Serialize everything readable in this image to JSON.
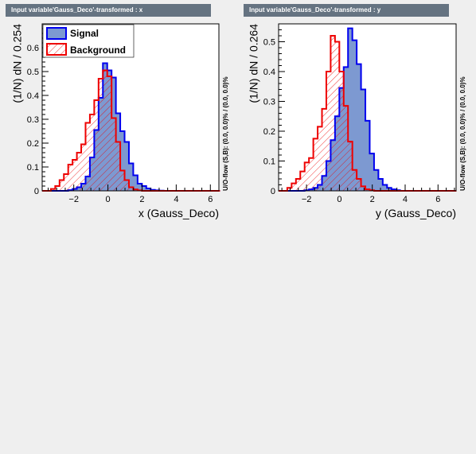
{
  "chart_data": [
    {
      "type": "histogram",
      "panel_title": "Input variable'Gauss_Deco'-transformed : x",
      "xlabel": "x (Gauss_Deco)",
      "ylabel": "(1/N) dN / 0.254",
      "overflow_label": "U/O-flow (S,B): (0.0, 0.0)% / (0.0, 0.0)%",
      "xlim": [
        -3.85,
        6.5
      ],
      "ylim": [
        0,
        0.7
      ],
      "x_ticks": [
        -2,
        0,
        2,
        4,
        6
      ],
      "x_tick_labels": [
        "−2",
        "0",
        "2",
        "4",
        "6"
      ],
      "y_ticks": [
        0,
        0.1,
        0.2,
        0.3,
        0.4,
        0.5,
        0.6
      ],
      "y_tick_labels": [
        "0",
        "0.1",
        "0.2",
        "0.3",
        "0.4",
        "0.5",
        "0.6"
      ],
      "bin_start": -3.85,
      "bin_width": 0.254,
      "legend": {
        "placement": "top-left",
        "entries": [
          "Signal",
          "Background"
        ]
      },
      "series": [
        {
          "name": "Signal",
          "color": "#0000ee",
          "fill": "#7d99d1",
          "values": [
            0,
            0,
            0,
            0,
            0,
            0,
            0.003,
            0.008,
            0.015,
            0.03,
            0.06,
            0.14,
            0.255,
            0.39,
            0.535,
            0.505,
            0.475,
            0.325,
            0.25,
            0.205,
            0.115,
            0.065,
            0.03,
            0.02,
            0.01,
            0.004,
            0.002,
            0.001,
            0,
            0,
            0,
            0,
            0,
            0,
            0,
            0,
            0,
            0,
            0,
            0,
            0
          ]
        },
        {
          "name": "Background",
          "color": "#ee0000",
          "fill": "none",
          "values": [
            0,
            0,
            0.008,
            0.02,
            0.045,
            0.07,
            0.11,
            0.13,
            0.16,
            0.195,
            0.285,
            0.32,
            0.38,
            0.47,
            0.505,
            0.48,
            0.305,
            0.205,
            0.085,
            0.045,
            0.015,
            0.006,
            0.002,
            0,
            0,
            0,
            0,
            0,
            0,
            0,
            0,
            0,
            0,
            0,
            0,
            0,
            0,
            0,
            0,
            0,
            0
          ]
        }
      ]
    },
    {
      "type": "histogram",
      "panel_title": "Input variable'Gauss_Deco'-transformed : y",
      "xlabel": "y (Gauss_Deco)",
      "ylabel": "(1/N) dN / 0.264",
      "overflow_label": "U/O-flow (S,B): (0.0, 0.0)% / (0.0, 0.0)%",
      "xlim": [
        -3.7,
        7.1
      ],
      "ylim": [
        0,
        0.56
      ],
      "x_ticks": [
        -2,
        0,
        2,
        4,
        6
      ],
      "x_tick_labels": [
        "−2",
        "0",
        "2",
        "4",
        "6"
      ],
      "y_ticks": [
        0,
        0.1,
        0.2,
        0.3,
        0.4,
        0.5
      ],
      "y_tick_labels": [
        "0",
        "0.1",
        "0.2",
        "0.3",
        "0.4",
        "0.5"
      ],
      "bin_start": -3.7,
      "bin_width": 0.264,
      "legend": null,
      "series": [
        {
          "name": "Signal",
          "color": "#0000ee",
          "fill": "#7d99d1",
          "values": [
            0,
            0,
            0,
            0,
            0,
            0,
            0.002,
            0.005,
            0.01,
            0.02,
            0.05,
            0.1,
            0.17,
            0.25,
            0.345,
            0.415,
            0.545,
            0.505,
            0.425,
            0.34,
            0.235,
            0.125,
            0.07,
            0.04,
            0.02,
            0.01,
            0.005,
            0.002,
            0,
            0,
            0,
            0,
            0,
            0,
            0,
            0,
            0,
            0,
            0,
            0,
            0
          ]
        },
        {
          "name": "Background",
          "color": "#ee0000",
          "fill": "none",
          "values": [
            0,
            0,
            0.01,
            0.025,
            0.04,
            0.065,
            0.095,
            0.11,
            0.175,
            0.215,
            0.275,
            0.4,
            0.52,
            0.5,
            0.4,
            0.285,
            0.165,
            0.07,
            0.04,
            0.015,
            0.005,
            0.002,
            0,
            0,
            0,
            0,
            0,
            0,
            0,
            0,
            0,
            0,
            0,
            0,
            0,
            0,
            0,
            0,
            0,
            0,
            0
          ]
        }
      ]
    }
  ]
}
